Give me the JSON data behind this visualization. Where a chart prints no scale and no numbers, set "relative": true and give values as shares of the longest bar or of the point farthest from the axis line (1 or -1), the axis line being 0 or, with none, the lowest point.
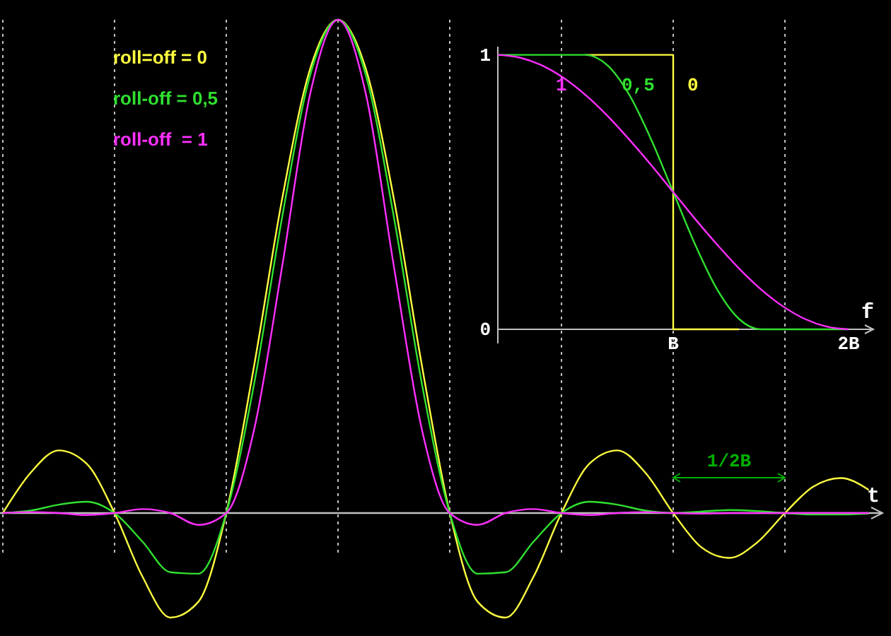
{
  "chart_data": [
    {
      "type": "line",
      "xlabel": "t",
      "relative": true,
      "legend": "top left",
      "categories": [
        null,
        null,
        null,
        null,
        null,
        null,
        null,
        null,
        null,
        null,
        null,
        null,
        null,
        null,
        null,
        null,
        null,
        null,
        null,
        null,
        null,
        null,
        null,
        null,
        null,
        null,
        null,
        null,
        null,
        null,
        null,
        null
      ],
      "series": [
        {
          "name": "roll=off = 0",
          "color": "#ffff40",
          "values": [
            0,
            0.082,
            0.127,
            0.1,
            0,
            -0.129,
            -0.212,
            -0.18,
            0,
            0.3,
            0.637,
            0.9,
            1,
            0.9,
            0.637,
            0.3,
            0,
            -0.18,
            -0.212,
            -0.129,
            0,
            0.1,
            0.127,
            0.082,
            0,
            -0.069,
            -0.091,
            -0.06,
            0,
            0.053,
            0.071,
            0.047
          ]
        },
        {
          "name": "roll-off = 0,5",
          "color": "#30e030",
          "values": [
            0,
            0.005,
            0.017,
            0.023,
            0,
            -0.058,
            -0.12,
            -0.123,
            0,
            0.263,
            0.6,
            0.887,
            1,
            0.887,
            0.6,
            0.263,
            0,
            -0.123,
            -0.12,
            -0.058,
            0,
            0.023,
            0.017,
            0.005,
            0,
            0.003,
            0.006,
            0.004,
            0,
            -0.003,
            -0.003,
            -0.001
          ]
        },
        {
          "name": "roll-off  = 1",
          "color": "#ff30ff",
          "values": [
            0,
            0.002,
            0,
            -0.004,
            0,
            0.008,
            0,
            -0.024,
            0,
            0.17,
            0.5,
            0.849,
            1,
            0.849,
            0.5,
            0.17,
            0,
            -0.024,
            0,
            0.008,
            0,
            -0.004,
            0,
            0.002,
            0,
            -0.001,
            0,
            0,
            0,
            0,
            0,
            0
          ]
        }
      ],
      "grid": "x",
      "annotations": [
        "1/2B"
      ]
    },
    {
      "type": "line",
      "xlabel": "f",
      "ylim": [
        0,
        1.03
      ],
      "yticks": [
        0,
        1
      ],
      "categories": [
        null,
        null,
        null,
        null,
        null,
        null,
        null,
        null,
        "B",
        null,
        null,
        null,
        null,
        null,
        null,
        null,
        "2B",
        null
      ],
      "series": [
        {
          "name": "0",
          "type": "step",
          "color": "#ffff40",
          "values": [
            null,
            null,
            null,
            null,
            1,
            1,
            1,
            1,
            0,
            0,
            0,
            0,
            null,
            null,
            null,
            null,
            null,
            null
          ]
        },
        {
          "name": "0,5",
          "color": "#30e030",
          "values": [
            1,
            1,
            1,
            1,
            1,
            0.962,
            0.854,
            0.691,
            0.5,
            0.309,
            0.146,
            0.038,
            0,
            0,
            0,
            0,
            0,
            null
          ]
        },
        {
          "name": "1",
          "color": "#ff30ff",
          "values": [
            1,
            0.99,
            0.962,
            0.916,
            0.854,
            0.778,
            0.691,
            0.598,
            0.5,
            0.402,
            0.309,
            0.222,
            0.146,
            0.084,
            0.038,
            0.01,
            0,
            null
          ]
        }
      ]
    }
  ]
}
